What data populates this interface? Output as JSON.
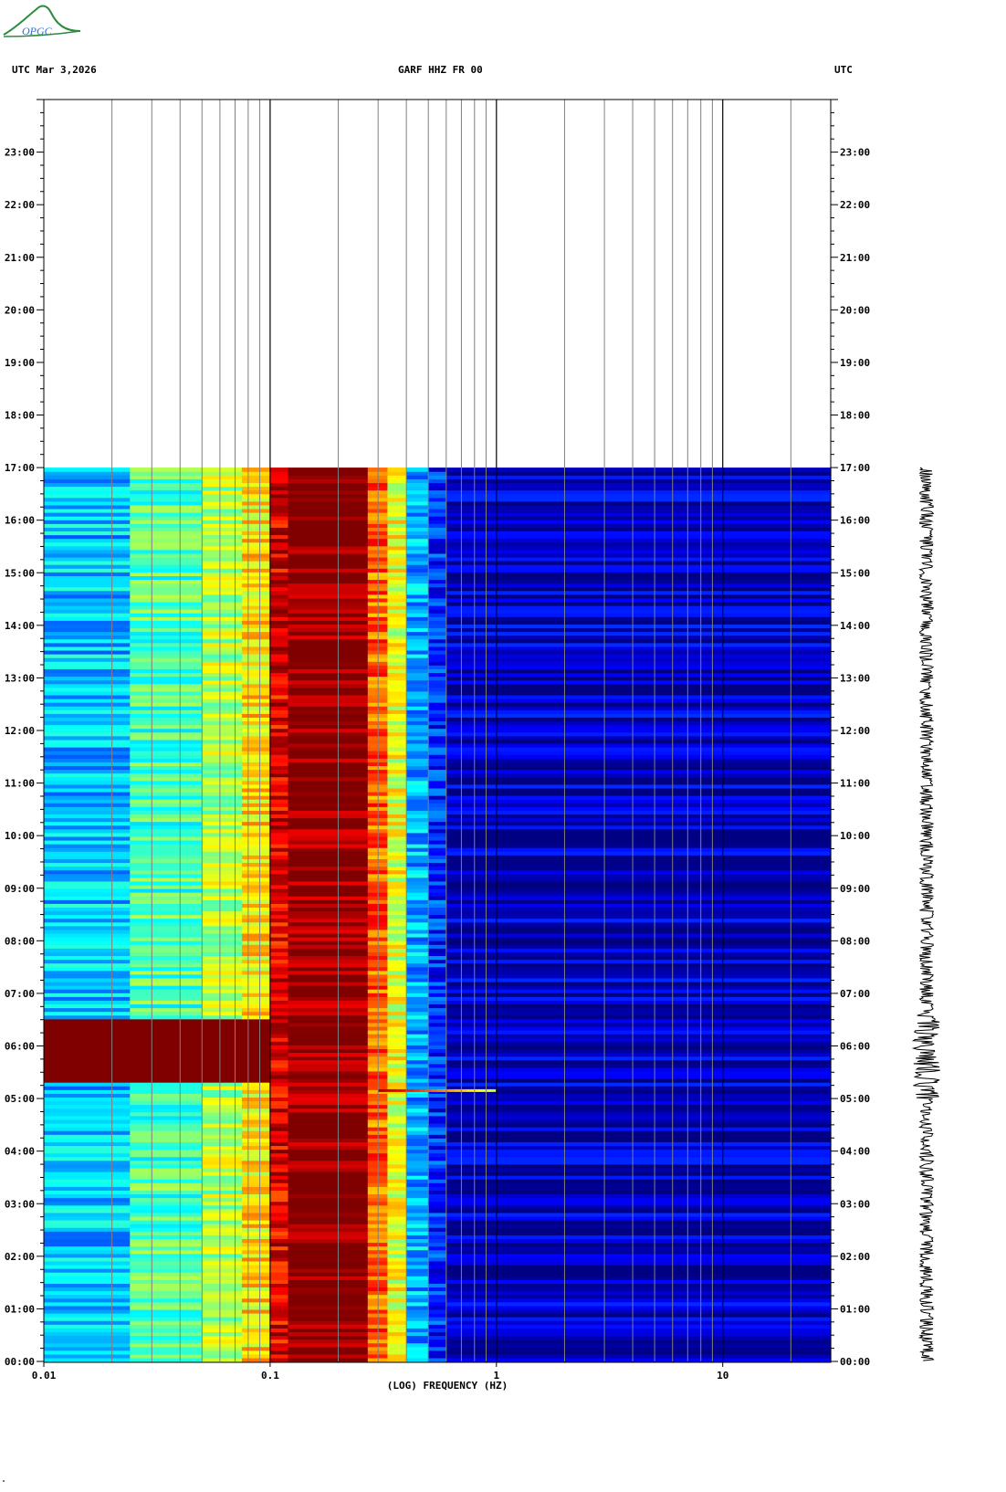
{
  "header": {
    "logo_text": "OPGC",
    "left_label": "UTC  Mar 3,2026",
    "center_label": "GARF HHZ FR 00",
    "right_label": "UTC"
  },
  "footer": {
    "mark": "\""
  },
  "colors": {
    "background": "#ffffff",
    "frame": "#000000",
    "gridline": "#808080",
    "logo_green": "#2e8b3e",
    "logo_blue": "#2a6fd6",
    "spectrum_low": "#00008b",
    "spectrum_high": "#8b0000"
  },
  "chart_data": {
    "type": "heatmap",
    "title": "GARF HHZ FR 00",
    "xlabel": "(LOG) FREQUENCY (HZ)",
    "ylabel": "",
    "x_scale": "log",
    "xlim": [
      0.01,
      30
    ],
    "x_ticks": [
      {
        "value": 0.01,
        "label": "0.01"
      },
      {
        "value": 0.1,
        "label": "0.1"
      },
      {
        "value": 1,
        "label": "1"
      },
      {
        "value": 10,
        "label": "10"
      }
    ],
    "y_unit": "hours UTC",
    "ylim": [
      0,
      24
    ],
    "y_ticks": [
      "00:00",
      "01:00",
      "02:00",
      "03:00",
      "04:00",
      "05:00",
      "06:00",
      "07:00",
      "08:00",
      "09:00",
      "10:00",
      "11:00",
      "12:00",
      "13:00",
      "14:00",
      "15:00",
      "16:00",
      "17:00",
      "18:00",
      "19:00",
      "20:00",
      "21:00",
      "22:00",
      "23:00"
    ],
    "data_end_hour": 17,
    "grid": true,
    "colormap": "jet",
    "spectral_bands": [
      {
        "freq_range": [
          0.01,
          0.024
        ],
        "level": 0.32
      },
      {
        "freq_range": [
          0.024,
          0.05
        ],
        "level": 0.45
      },
      {
        "freq_range": [
          0.05,
          0.075
        ],
        "level": 0.55
      },
      {
        "freq_range": [
          0.075,
          0.1
        ],
        "level": 0.65
      },
      {
        "freq_range": [
          0.1,
          0.12
        ],
        "level": 0.9
      },
      {
        "freq_range": [
          0.12,
          0.27
        ],
        "level": 1.0
      },
      {
        "freq_range": [
          0.27,
          0.33
        ],
        "level": 0.78
      },
      {
        "freq_range": [
          0.33,
          0.4
        ],
        "level": 0.6
      },
      {
        "freq_range": [
          0.4,
          0.5
        ],
        "level": 0.3
      },
      {
        "freq_range": [
          0.5,
          0.6
        ],
        "level": 0.16
      },
      {
        "freq_range": [
          0.6,
          30
        ],
        "level": 0.06
      }
    ],
    "events": [
      {
        "label": "long-period disturbance",
        "hour_range": [
          5.3,
          6.5
        ],
        "freq_max": 0.1,
        "level": 1.0
      },
      {
        "label": "narrow event",
        "hour": 5.15,
        "freq_range": [
          0.3,
          1.0
        ],
        "level": 0.55
      }
    ],
    "seismogram": {
      "hour_range": [
        0,
        17
      ],
      "enhanced_hour_range": [
        5.0,
        6.6
      ]
    }
  }
}
